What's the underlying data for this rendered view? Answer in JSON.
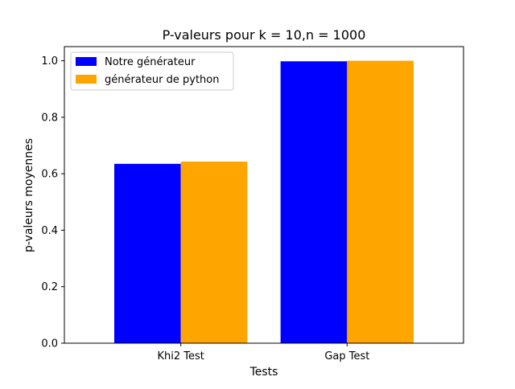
{
  "chart_data": {
    "type": "bar",
    "title": "P-valeurs pour k = 10,n = 1000",
    "xlabel": "Tests",
    "ylabel": "p-valeurs moyennes",
    "categories": [
      "Khi2 Test",
      "Gap Test"
    ],
    "series": [
      {
        "name": "Notre générateur",
        "values": [
          0.635,
          0.998
        ],
        "color": "#0000ff"
      },
      {
        "name": "générateur de python",
        "values": [
          0.643,
          1.0
        ],
        "color": "#ffa500"
      }
    ],
    "ylim": [
      0,
      1.05
    ],
    "yticks": [
      "0.0",
      "0.2",
      "0.4",
      "0.6",
      "0.8",
      "1.0"
    ],
    "grid": false,
    "legend_position": "top-left"
  }
}
